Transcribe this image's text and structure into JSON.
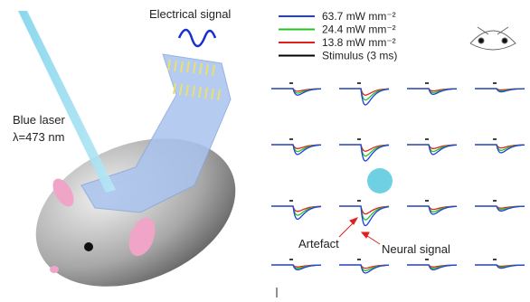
{
  "illustration": {
    "signal_label": "Electrical signal",
    "laser_label": "Blue laser",
    "wavelength_label": "λ=473 nm"
  },
  "legend": {
    "items": [
      {
        "label": "63.7 mW mm⁻²",
        "color": "#1f3fe0"
      },
      {
        "label": "24.4 mW mm⁻²",
        "color": "#22c322"
      },
      {
        "label": "13.8 mW mm⁻²",
        "color": "#e02020"
      },
      {
        "label": "Stimulus (3 ms)",
        "color": "#000000"
      }
    ]
  },
  "annotations": {
    "artefact": "Artefact",
    "neural": "Neural signal"
  }
}
